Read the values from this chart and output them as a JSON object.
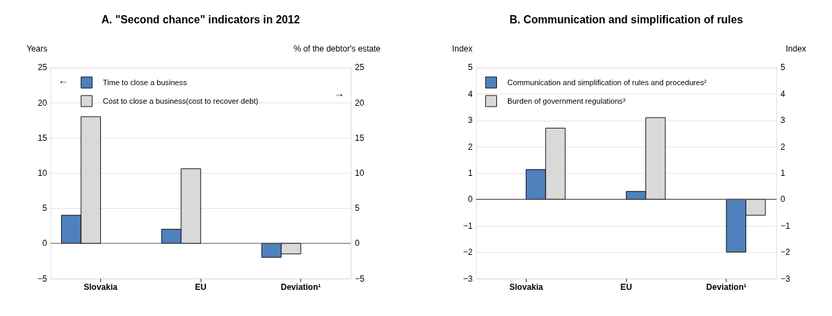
{
  "chart_data": [
    {
      "type": "bar",
      "title": "A. \"Second chance\" indicators in 2012",
      "ylabel": "Years",
      "y2label": "% of the debtor's estate",
      "categories": [
        "Slovakia",
        "EU",
        "Deviation¹"
      ],
      "series": [
        {
          "name": "Time to close a business",
          "color": "#4f81bd",
          "values": [
            4.0,
            2.0,
            -2.0
          ]
        },
        {
          "name": "Cost to close a business(cost to recover debt)",
          "color": "#d9d9d9",
          "values": [
            18.0,
            10.6,
            -1.5
          ],
          "axis": "y2"
        }
      ],
      "ylim": [
        -5,
        25
      ],
      "yticks": [
        -5,
        0,
        5,
        10,
        15,
        20,
        25
      ],
      "y2lim": [
        -5,
        25
      ],
      "y2ticks": [
        -5,
        0,
        5,
        10,
        15,
        20,
        25
      ],
      "grid": "y",
      "legend": "top left",
      "annotations": [
        "←",
        "→"
      ]
    },
    {
      "type": "bar",
      "title": "B. Communication and simplification of rules",
      "ylabel": "Index",
      "y2label": "Index",
      "categories": [
        "Slovakia",
        "EU",
        "Deviation¹"
      ],
      "series": [
        {
          "name": "Communication and simplification of rules and procedures²",
          "color": "#4f81bd",
          "values": [
            1.13,
            0.3,
            -2.0
          ]
        },
        {
          "name": "Burden of government regulations³",
          "color": "#d9d9d9",
          "values": [
            2.7,
            3.1,
            -0.6
          ]
        }
      ],
      "ylim": [
        -3,
        5
      ],
      "yticks": [
        -3,
        -2,
        -1,
        0,
        1,
        2,
        3,
        4,
        5
      ],
      "y2lim": [
        -3,
        5
      ],
      "y2ticks": [
        -3,
        -2,
        -1,
        0,
        1,
        2,
        3,
        4,
        5
      ],
      "grid": "y",
      "legend": "top left"
    }
  ]
}
